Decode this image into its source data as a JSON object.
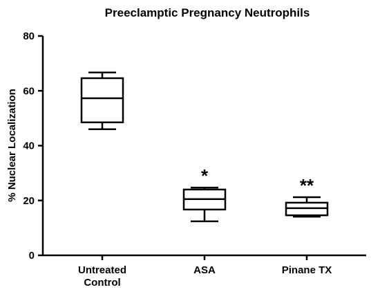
{
  "chart_data": {
    "type": "box",
    "title": "Preeclamptic Pregnancy Neutrophils",
    "y_label": "% Nuclear Localization",
    "categories": [
      "Untreated Control",
      "ASA",
      "Pinane TX"
    ],
    "boxes": [
      {
        "min": 46,
        "q1": 48.5,
        "median": 57.3,
        "q3": 64.6,
        "max": 66.7
      },
      {
        "min": 12.4,
        "q1": 16.7,
        "median": 20.5,
        "q3": 24,
        "max": 24.7
      },
      {
        "min": 14.1,
        "q1": 14.6,
        "median": 17.2,
        "q3": 19.2,
        "max": 21.2
      }
    ],
    "color": "#000000",
    "annotations": [
      {
        "category": "ASA",
        "text": "*"
      },
      {
        "category": "Pinane TX",
        "text": "**"
      }
    ],
    "ylim": [
      0,
      80
    ],
    "yticks": [
      0,
      20,
      40,
      60,
      80
    ]
  }
}
